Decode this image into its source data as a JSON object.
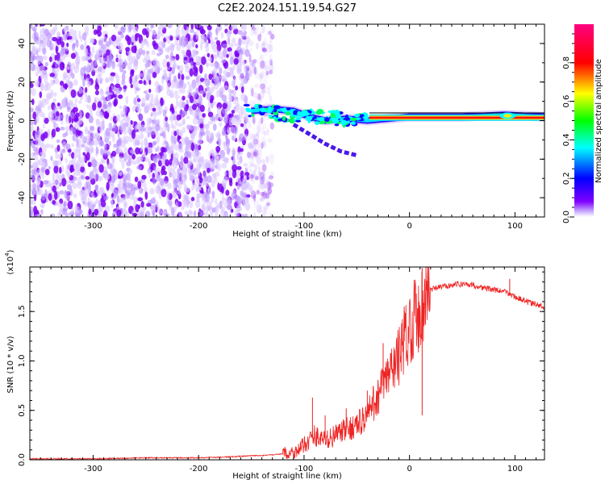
{
  "title": "C2E2.2024.151.19.54.G27",
  "chart_data": [
    {
      "type": "heatmap",
      "xlabel": "Height of straight line (km)",
      "ylabel": "Frequency (Hz)",
      "xlim": [
        -360,
        128
      ],
      "ylim": [
        -50,
        50
      ],
      "xticks": [
        -300,
        -200,
        -100,
        0,
        100
      ],
      "xtick_labels": [
        "-300",
        "-200",
        "-100",
        "0",
        "100"
      ],
      "yticks": [
        -40,
        -20,
        0,
        20,
        40
      ],
      "ytick_labels": [
        "-40",
        "-20",
        "0",
        "20",
        "40"
      ],
      "colorbar": {
        "label": "Normalized spectral amplitude",
        "range": [
          0,
          1
        ],
        "ticks": [
          0.0,
          0.2,
          0.4,
          0.6,
          0.8
        ],
        "tick_labels": [
          "0.0",
          "0.2",
          "0.4",
          "0.6",
          "0.8"
        ],
        "colors": [
          "#ffffff",
          "#8000ff",
          "#0000ff",
          "#00ffff",
          "#00ff00",
          "#ffff00",
          "#ff0000",
          "#ff0080"
        ]
      },
      "features": {
        "noise_region_x": [
          -360,
          -130
        ],
        "signal_track": [
          {
            "x": -150,
            "y": 5
          },
          {
            "x": -130,
            "y": 6
          },
          {
            "x": -110,
            "y": 5
          },
          {
            "x": -95,
            "y": 2
          },
          {
            "x": -80,
            "y": 0
          },
          {
            "x": -60,
            "y": 1
          },
          {
            "x": -40,
            "y": 0
          },
          {
            "x": -20,
            "y": 1
          },
          {
            "x": 0,
            "y": 2
          },
          {
            "x": 50,
            "y": 2
          },
          {
            "x": 90,
            "y": 3
          },
          {
            "x": 128,
            "y": 2
          }
        ],
        "lower_branch": [
          {
            "x": -110,
            "y": -2
          },
          {
            "x": -95,
            "y": -7
          },
          {
            "x": -80,
            "y": -12
          },
          {
            "x": -65,
            "y": -16
          },
          {
            "x": -50,
            "y": -18
          }
        ]
      }
    },
    {
      "type": "line",
      "xlabel": "Height of straight line (km)",
      "ylabel": "SNR (10 * v/v)",
      "y_multiplier": "(x10",
      "y_multiplier_exp": "4",
      "y_multiplier_close": ")",
      "xlim": [
        -360,
        128
      ],
      "ylim": [
        0,
        1.95
      ],
      "xticks": [
        -300,
        -200,
        -100,
        0,
        100
      ],
      "xtick_labels": [
        "-300",
        "-200",
        "-100",
        "0",
        "100"
      ],
      "yticks": [
        0.0,
        0.5,
        1.0,
        1.5
      ],
      "ytick_labels": [
        "0.0",
        "0.5",
        "1.0",
        "1.5"
      ],
      "series_color": "#ee2222",
      "series": [
        {
          "name": "SNR",
          "x": [
            -360,
            -300,
            -250,
            -200,
            -170,
            -150,
            -130,
            -120,
            -110,
            -105,
            -100,
            -95,
            -90,
            -85,
            -80,
            -75,
            -70,
            -65,
            -60,
            -55,
            -50,
            -45,
            -40,
            -35,
            -30,
            -25,
            -20,
            -15,
            -10,
            -5,
            0,
            5,
            10,
            15,
            20,
            30,
            40,
            50,
            60,
            70,
            80,
            90,
            100,
            110,
            120,
            128
          ],
          "values": [
            0.01,
            0.01,
            0.02,
            0.02,
            0.03,
            0.04,
            0.05,
            0.06,
            0.08,
            0.1,
            0.15,
            0.2,
            0.25,
            0.22,
            0.2,
            0.22,
            0.25,
            0.28,
            0.3,
            0.33,
            0.35,
            0.4,
            0.45,
            0.55,
            0.65,
            0.75,
            0.85,
            0.95,
            1.05,
            1.2,
            1.35,
            1.45,
            1.5,
            1.65,
            1.72,
            1.75,
            1.77,
            1.78,
            1.77,
            1.74,
            1.72,
            1.7,
            1.65,
            1.6,
            1.57,
            1.55
          ],
          "spikes": [
            {
              "x": -92,
              "y": 0.63
            },
            {
              "x": -80,
              "y": 0.45
            },
            {
              "x": -60,
              "y": 0.52
            },
            {
              "x": -40,
              "y": 0.7
            },
            {
              "x": -25,
              "y": 1.18
            },
            {
              "x": -5,
              "y": 1.55
            },
            {
              "x": 12,
              "y": 1.94
            },
            {
              "x": 12,
              "y": 0.45
            },
            {
              "x": 95,
              "y": 1.83
            }
          ]
        }
      ]
    }
  ]
}
